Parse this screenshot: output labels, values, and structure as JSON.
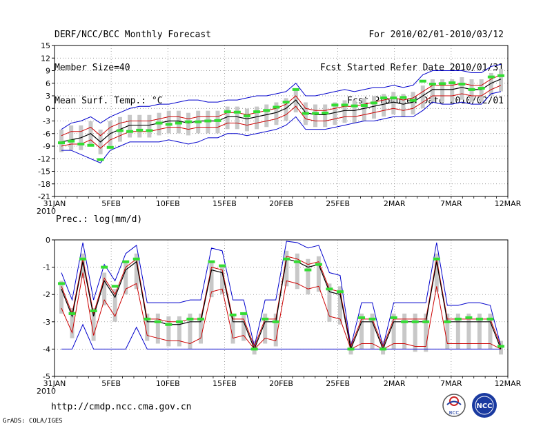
{
  "header": {
    "left": [
      "DERF/NCC/BCC Monthly Forecast",
      "Member Size=40",
      "Mean Surf. Temp.: °C"
    ],
    "right": [
      "For 2010/02/01-2010/03/12",
      "Fcst Started Refer Date 2010/01/31",
      "Fcst Produced Date 2010/02/01"
    ]
  },
  "footer": {
    "url": "http://cmdp.ncc.cma.gov.cn",
    "credit": "GrADS: COLA/IGES",
    "logo_left": "BCC",
    "logo_right": "NCC"
  },
  "colors": {
    "mean": "#000000",
    "lower": "#cc0000",
    "upper": "#cc0000",
    "spread": "#0000cc",
    "bar": "#c8c8c8",
    "obs": "#33dd33"
  },
  "chart_data": [
    {
      "type": "line",
      "title": "Mean Surf. Temp.: °C",
      "x_labels": [
        "31JAN",
        "5FEB",
        "10FEB",
        "15FEB",
        "20FEB",
        "25FEB",
        "2MAR",
        "7MAR",
        "12MAR"
      ],
      "x_label_offsets": [
        0,
        5,
        10,
        15,
        20,
        25,
        30,
        35,
        40
      ],
      "year_label": "2010",
      "ylim": [
        -21,
        15
      ],
      "yticks": [
        -21,
        -18,
        -15,
        -12,
        -9,
        -6,
        -3,
        0,
        3,
        6,
        9,
        12,
        15
      ],
      "series": [
        {
          "name": "ensemble mean",
          "values": [
            -8,
            -7.5,
            -7,
            -6,
            -8,
            -6,
            -5,
            -4,
            -4,
            -4,
            -3.5,
            -3,
            -3,
            -3.5,
            -3,
            -3,
            -3,
            -2,
            -2,
            -2.5,
            -2,
            -1.5,
            -1,
            0,
            2,
            -1,
            -1.5,
            -1.5,
            -1,
            -0.5,
            -0.5,
            0,
            0.5,
            1,
            1.5,
            1,
            1.5,
            3,
            4.5,
            4.5,
            4.5,
            5,
            4.5,
            4.5,
            6,
            7
          ]
        },
        {
          "name": "upper",
          "values": [
            -6.5,
            -5.5,
            -5.5,
            -4.5,
            -6.5,
            -4.5,
            -3.5,
            -3,
            -3,
            -3,
            -2.5,
            -2,
            -2,
            -2.5,
            -2,
            -2,
            -2,
            -1,
            -1,
            -1.5,
            -1,
            -0.5,
            0,
            1,
            3,
            0,
            -0.5,
            -0.5,
            0,
            0.5,
            0.5,
            1,
            1.5,
            2,
            2.5,
            2,
            2.5,
            4,
            5.5,
            5.5,
            5.5,
            6,
            5.5,
            5.5,
            7,
            8
          ]
        },
        {
          "name": "lower",
          "values": [
            -9,
            -8.5,
            -8.5,
            -7.5,
            -9.5,
            -7.5,
            -6.5,
            -5.5,
            -5.5,
            -5.5,
            -5,
            -4.5,
            -4.5,
            -5,
            -4.5,
            -4.5,
            -4.5,
            -3.5,
            -3.5,
            -4,
            -3.5,
            -3,
            -2.5,
            -1.5,
            0.5,
            -2.5,
            -3,
            -3,
            -2.5,
            -2,
            -2,
            -1.5,
            -1,
            -0.5,
            0,
            -0.5,
            0,
            1.5,
            3,
            3,
            3,
            3.5,
            3,
            3,
            4.5,
            5.5
          ]
        },
        {
          "name": "max",
          "values": [
            -5,
            -3.5,
            -3,
            -2,
            -3.5,
            -2,
            -1,
            0,
            0.5,
            0.5,
            1,
            1,
            1.5,
            2,
            2,
            1.5,
            1.5,
            2,
            2,
            2.5,
            3,
            3,
            3.5,
            4,
            6,
            3,
            3,
            3.5,
            4,
            4.5,
            4,
            4.5,
            5,
            5,
            5.5,
            5,
            5.5,
            8,
            9,
            9,
            9,
            9,
            8.5,
            8.5,
            10,
            10.5
          ]
        },
        {
          "name": "min",
          "values": [
            -10,
            -10,
            -11,
            -12,
            -13,
            -10,
            -9,
            -8,
            -8,
            -8,
            -8,
            -7.5,
            -8,
            -8.5,
            -8,
            -7,
            -7,
            -6,
            -6,
            -6.5,
            -6,
            -5.5,
            -5,
            -4,
            -2,
            -5,
            -5,
            -5,
            -4.5,
            -4,
            -3.5,
            -3,
            -3,
            -2.5,
            -2,
            -2,
            -2,
            -0.5,
            1.5,
            1,
            1,
            1.5,
            1,
            1,
            3.5,
            4
          ]
        },
        {
          "name": "observed",
          "values": [
            -8.2,
            -7.8,
            -8.5,
            -8.8,
            -12.2,
            -9.3,
            -5.3,
            -5.5,
            -5.2,
            -5.3,
            -3.5,
            -3.8,
            -3.5,
            -3.2,
            -3.2,
            -3,
            -2.9,
            -0.8,
            -0.9,
            -1.8,
            -0.8,
            -0.5,
            0.3,
            1.5,
            4.5,
            -1.2,
            -1.2,
            -1.1,
            0.8,
            0.8,
            0.6,
            0.7,
            1.3,
            2.5,
            2.5,
            2.6,
            1.9,
            6.5,
            5.8,
            5.9,
            6.1,
            5.8,
            4.5,
            4.8,
            7.5,
            7.8
          ]
        }
      ]
    },
    {
      "type": "line",
      "title": "Prec.: log(mm/d)",
      "x_labels": [
        "31JAN",
        "5FEB",
        "10FEB",
        "15FEB",
        "20FEB",
        "25FEB",
        "2MAR",
        "7MAR",
        "12MAR"
      ],
      "x_label_offsets": [
        0,
        5,
        10,
        15,
        20,
        25,
        30,
        35,
        40
      ],
      "year_label": "2010",
      "ylim": [
        -5,
        0
      ],
      "yticks": [
        -5,
        -4,
        -3,
        -2,
        -1,
        0
      ],
      "series": [
        {
          "name": "ensemble mean",
          "values": [
            -1.8,
            -2.8,
            -0.8,
            -2.8,
            -1.5,
            -2.1,
            -1.1,
            -0.8,
            -3,
            -3,
            -3.1,
            -3.1,
            -3,
            -3,
            -1.1,
            -1.2,
            -3,
            -3,
            -4,
            -3,
            -3,
            -0.7,
            -0.8,
            -1,
            -0.9,
            -1.9,
            -2,
            -4,
            -3,
            -3,
            -4,
            -3,
            -3,
            -3,
            -3,
            -0.8,
            -3,
            -3,
            -3,
            -3,
            -3,
            -4
          ]
        },
        {
          "name": "upper",
          "values": [
            -1.7,
            -2.7,
            -0.7,
            -2.7,
            -1.4,
            -2,
            -1,
            -0.7,
            -2.9,
            -2.9,
            -3,
            -3,
            -2.9,
            -2.9,
            -1,
            -1.1,
            -2.9,
            -2.9,
            -3.9,
            -2.9,
            -2.9,
            -0.6,
            -0.7,
            -0.9,
            -0.8,
            -1.8,
            -1.9,
            -3.9,
            -2.9,
            -2.9,
            -3.9,
            -2.9,
            -2.9,
            -2.9,
            -2.9,
            -0.7,
            -2.9,
            -2.9,
            -2.9,
            -2.9,
            -2.9,
            -3.9
          ]
        },
        {
          "name": "lower",
          "values": [
            -2.5,
            -3.4,
            -1.2,
            -3.5,
            -2.2,
            -2.8,
            -1.8,
            -1.6,
            -3.5,
            -3.6,
            -3.7,
            -3.7,
            -3.8,
            -3.6,
            -1.9,
            -1.8,
            -3.6,
            -3.5,
            -4,
            -3.6,
            -3.7,
            -1.5,
            -1.6,
            -1.8,
            -1.7,
            -2.8,
            -2.9,
            -4,
            -3.8,
            -3.8,
            -4,
            -3.8,
            -3.8,
            -3.9,
            -3.9,
            -1.7,
            -3.8,
            -3.8,
            -3.8,
            -3.8,
            -3.8,
            -4
          ]
        },
        {
          "name": "max",
          "values": [
            -1.2,
            -2.2,
            -0.1,
            -2.2,
            -0.9,
            -1.5,
            -0.5,
            -0.2,
            -2.3,
            -2.3,
            -2.3,
            -2.3,
            -2.2,
            -2.2,
            -0.3,
            -0.4,
            -2.2,
            -2.2,
            -3.9,
            -2.2,
            -2.2,
            -0.05,
            -0.1,
            -0.3,
            -0.2,
            -1.2,
            -1.3,
            -3.9,
            -2.3,
            -2.3,
            -3.9,
            -2.3,
            -2.3,
            -2.3,
            -2.3,
            -0.1,
            -2.4,
            -2.4,
            -2.3,
            -2.3,
            -2.4,
            -3.9
          ]
        },
        {
          "name": "min",
          "values": [
            -4,
            -4,
            -3.1,
            -4,
            -4,
            -4,
            -4,
            -3.2,
            -4,
            -4,
            -4,
            -4,
            -4,
            -4,
            -4,
            -4,
            -4,
            -4,
            -4,
            -4,
            -4,
            -4,
            -4,
            -4,
            -4,
            -4,
            -4,
            -4,
            -4,
            -4,
            -4,
            -4,
            -4,
            -4,
            -4,
            -4,
            -4,
            -4,
            -4,
            -4,
            -4,
            -4
          ]
        },
        {
          "name": "observed",
          "values": [
            -1.6,
            -2.7,
            -0.7,
            -2.6,
            -1,
            -1.7,
            -0.8,
            -0.7,
            -2.9,
            -3,
            -3.1,
            -3,
            -2.9,
            -2.9,
            -0.8,
            -0.95,
            -2.75,
            -2.7,
            -4,
            -2.9,
            -3,
            -0.7,
            -0.8,
            -1.1,
            -0.9,
            -1.8,
            -1.9,
            -4,
            -2.85,
            -2.9,
            -4,
            -2.85,
            -3,
            -3,
            -3,
            -0.7,
            -3,
            -2.9,
            -2.85,
            -2.9,
            -2.9,
            -3.9
          ]
        }
      ]
    }
  ]
}
